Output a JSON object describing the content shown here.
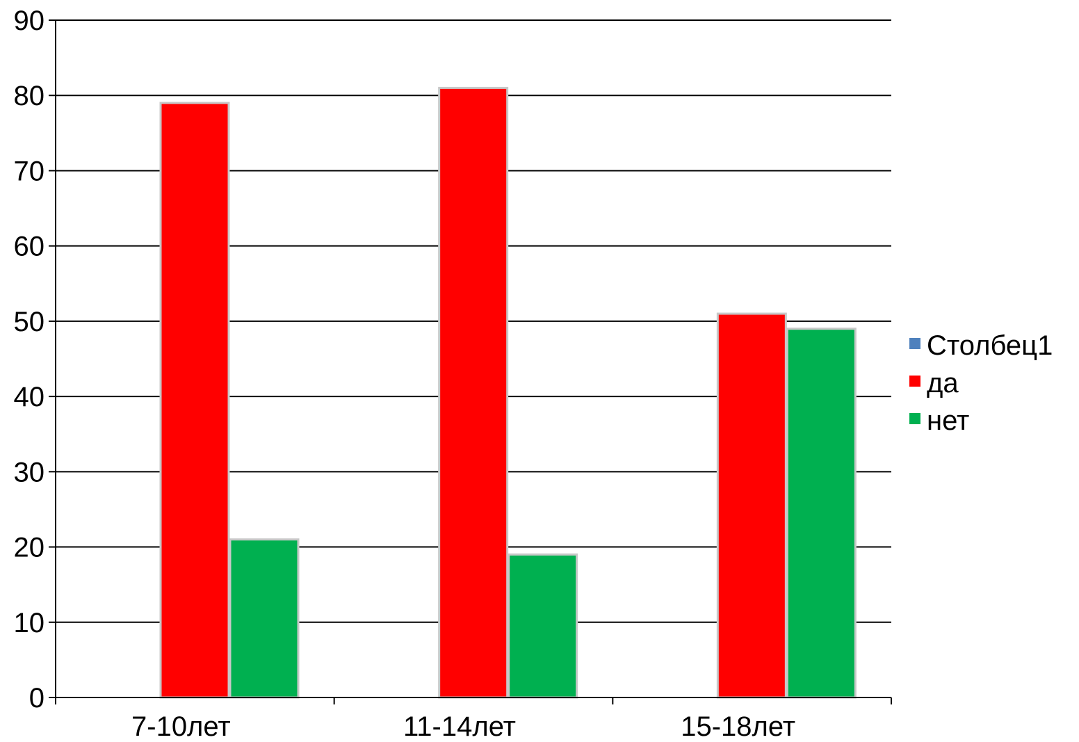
{
  "chart_data": {
    "type": "bar",
    "categories": [
      "7-10лет",
      "11-14лет",
      "15-18лет"
    ],
    "series": [
      {
        "name": "Столбец1",
        "values": [
          0,
          0,
          0
        ],
        "color": "#4f81bd"
      },
      {
        "name": "да",
        "values": [
          79,
          81,
          51
        ],
        "color": "#ff0000"
      },
      {
        "name": "нет",
        "values": [
          21,
          19,
          49
        ],
        "color": "#00b050"
      }
    ],
    "y_ticks": [
      "0",
      "10",
      "20",
      "30",
      "40",
      "50",
      "60",
      "70",
      "80",
      "90"
    ],
    "ylim": [
      0,
      90
    ],
    "ytick_step": 10,
    "grid": true,
    "legend_position": "right"
  }
}
